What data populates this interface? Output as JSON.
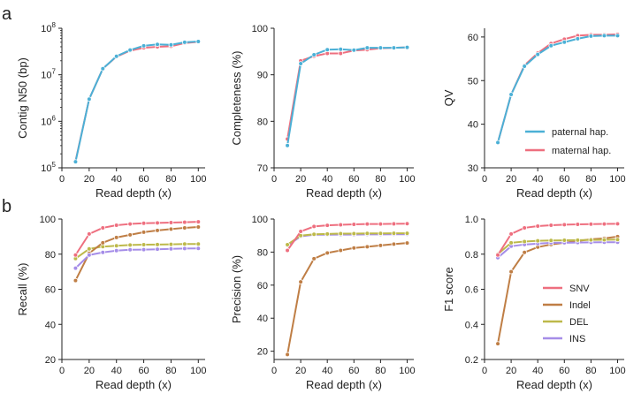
{
  "panel_labels": [
    "a",
    "b"
  ],
  "colors": {
    "paternal": "#4bb0d6",
    "maternal": "#ee6f7f",
    "SNV": "#ee6f7f",
    "Indel": "#bf7e45",
    "DEL": "#bdb94a",
    "INS": "#a58de8",
    "axis": "#222222"
  },
  "chart_data": [
    {
      "id": "contig_n50",
      "type": "line",
      "panel": "a",
      "yscale": "log",
      "xlabel": "Read depth (x)",
      "ylabel": "Contig N50 (bp)",
      "xlim": [
        0,
        105
      ],
      "ylim": [
        100000,
        100000000
      ],
      "xticks": [
        0,
        20,
        40,
        60,
        80,
        100
      ],
      "xticklabels": [
        "0",
        "20",
        "40",
        "60",
        "80",
        "100"
      ],
      "yticks": [
        100000,
        1000000,
        10000000,
        100000000
      ],
      "yticklabels": [
        [
          "10",
          "5"
        ],
        [
          "10",
          "6"
        ],
        [
          "10",
          "7"
        ],
        [
          "10",
          "8"
        ]
      ],
      "x": [
        10,
        20,
        30,
        40,
        50,
        60,
        70,
        80,
        90,
        100
      ],
      "series": [
        {
          "name": "maternal hap.",
          "color_key": "maternal",
          "values": [
            140000,
            3000000,
            13500000,
            24500000,
            33000000,
            38000000,
            40000000,
            41000000,
            48000000,
            51000000
          ]
        },
        {
          "name": "paternal hap.",
          "color_key": "paternal",
          "values": [
            135000,
            3000000,
            13500000,
            25000000,
            34000000,
            42000000,
            45000000,
            44000000,
            50000000,
            52000000
          ]
        }
      ],
      "legend": null
    },
    {
      "id": "completeness",
      "type": "line",
      "panel": "a",
      "xlabel": "Read depth (x)",
      "ylabel": "Completeness (%)",
      "xlim": [
        0,
        105
      ],
      "ylim": [
        70,
        100
      ],
      "xticks": [
        0,
        20,
        40,
        60,
        80,
        100
      ],
      "xticklabels": [
        "0",
        "20",
        "40",
        "60",
        "80",
        "100"
      ],
      "yticks": [
        70,
        80,
        90,
        100
      ],
      "yticklabels": [
        "70",
        "80",
        "90",
        "100"
      ],
      "x": [
        10,
        20,
        30,
        40,
        50,
        60,
        70,
        80,
        90,
        100
      ],
      "series": [
        {
          "name": "maternal hap.",
          "color_key": "maternal",
          "values": [
            76.2,
            93.0,
            94.0,
            94.6,
            94.6,
            95.2,
            95.4,
            95.7,
            95.8,
            95.9
          ]
        },
        {
          "name": "paternal hap.",
          "color_key": "paternal",
          "values": [
            74.8,
            92.4,
            94.3,
            95.4,
            95.5,
            95.3,
            95.8,
            95.8,
            95.8,
            95.9
          ]
        }
      ],
      "legend": null
    },
    {
      "id": "qv",
      "type": "line",
      "panel": "a",
      "xlabel": "Read depth (x)",
      "ylabel": "QV",
      "xlim": [
        0,
        105
      ],
      "ylim": [
        30,
        62
      ],
      "xticks": [
        0,
        20,
        40,
        60,
        80,
        100
      ],
      "xticklabels": [
        "0",
        "20",
        "40",
        "60",
        "80",
        "100"
      ],
      "yticks": [
        30,
        40,
        50,
        60
      ],
      "yticklabels": [
        "30",
        "40",
        "50",
        "60"
      ],
      "x": [
        10,
        20,
        30,
        40,
        50,
        60,
        70,
        80,
        90,
        100
      ],
      "series": [
        {
          "name": "maternal hap.",
          "color_key": "maternal",
          "values": [
            35.8,
            46.8,
            53.5,
            56.3,
            58.5,
            59.5,
            60.3,
            60.5,
            60.5,
            60.6
          ]
        },
        {
          "name": "paternal hap.",
          "color_key": "paternal",
          "values": [
            35.8,
            46.8,
            53.3,
            56.0,
            58.0,
            58.8,
            59.6,
            60.2,
            60.3,
            60.3
          ]
        }
      ],
      "legend": {
        "position": "lower-right",
        "entries": [
          {
            "label": "paternal hap.",
            "color_key": "paternal"
          },
          {
            "label": "maternal hap.",
            "color_key": "maternal"
          }
        ]
      }
    },
    {
      "id": "recall",
      "type": "line",
      "panel": "b",
      "xlabel": "Read depth (x)",
      "ylabel": "Recall (%)",
      "xlim": [
        0,
        105
      ],
      "ylim": [
        20,
        100
      ],
      "xticks": [
        0,
        20,
        40,
        60,
        80,
        100
      ],
      "xticklabels": [
        "0",
        "20",
        "40",
        "60",
        "80",
        "100"
      ],
      "yticks": [
        20,
        40,
        60,
        80,
        100
      ],
      "yticklabels": [
        "20",
        "40",
        "60",
        "80",
        "100"
      ],
      "x": [
        10,
        20,
        30,
        40,
        50,
        60,
        70,
        80,
        90,
        100
      ],
      "series": [
        {
          "name": "DEL",
          "color_key": "DEL",
          "values": [
            77.5,
            83.0,
            84.3,
            84.8,
            85.2,
            85.4,
            85.5,
            85.6,
            85.8,
            85.8
          ]
        },
        {
          "name": "Indel",
          "color_key": "Indel",
          "values": [
            65.0,
            80.5,
            86.5,
            89.5,
            91.0,
            92.5,
            93.5,
            94.3,
            95.0,
            95.5
          ]
        },
        {
          "name": "INS",
          "color_key": "INS",
          "values": [
            72.0,
            79.5,
            81.0,
            82.0,
            82.5,
            82.6,
            82.8,
            83.0,
            83.2,
            83.3
          ]
        },
        {
          "name": "SNV",
          "color_key": "SNV",
          "values": [
            79.5,
            91.5,
            95.0,
            96.5,
            97.2,
            97.6,
            97.8,
            98.0,
            98.2,
            98.4
          ]
        }
      ],
      "legend": null
    },
    {
      "id": "precision",
      "type": "line",
      "panel": "b",
      "xlabel": "Read depth (x)",
      "ylabel": "Precision (%)",
      "xlim": [
        0,
        105
      ],
      "ylim": [
        15,
        100
      ],
      "xticks": [
        0,
        20,
        40,
        60,
        80,
        100
      ],
      "xticklabels": [
        "0",
        "20",
        "40",
        "60",
        "80",
        "100"
      ],
      "yticks": [
        20,
        40,
        60,
        80,
        100
      ],
      "yticklabels": [
        "20",
        "40",
        "60",
        "80",
        "100"
      ],
      "x": [
        10,
        20,
        30,
        40,
        50,
        60,
        70,
        80,
        90,
        100
      ],
      "series": [
        {
          "name": "Indel",
          "color_key": "Indel",
          "values": [
            18.0,
            62.0,
            76.0,
            79.5,
            81.0,
            82.5,
            83.2,
            84.0,
            84.8,
            85.5
          ]
        },
        {
          "name": "INS",
          "color_key": "INS",
          "values": [
            84.0,
            89.5,
            90.5,
            90.5,
            90.6,
            90.6,
            90.7,
            90.7,
            90.8,
            90.8
          ]
        },
        {
          "name": "DEL",
          "color_key": "DEL",
          "values": [
            84.5,
            90.0,
            90.8,
            91.0,
            91.2,
            91.2,
            91.3,
            91.3,
            91.4,
            91.4
          ]
        },
        {
          "name": "SNV",
          "color_key": "SNV",
          "values": [
            81.0,
            92.5,
            95.5,
            96.2,
            96.5,
            96.8,
            97.0,
            97.0,
            97.1,
            97.2
          ]
        }
      ],
      "legend": null
    },
    {
      "id": "f1_score",
      "type": "line",
      "panel": "b",
      "xlabel": "Read depth (x)",
      "ylabel": "F1 score",
      "xlim": [
        0,
        105
      ],
      "ylim": [
        0.2,
        1.0
      ],
      "xticks": [
        0,
        20,
        40,
        60,
        80,
        100
      ],
      "xticklabels": [
        "0",
        "20",
        "40",
        "60",
        "80",
        "100"
      ],
      "yticks": [
        0.2,
        0.4,
        0.6,
        0.8,
        1.0
      ],
      "yticklabels": [
        "0.2",
        "0.4",
        "0.6",
        "0.8",
        "1.0"
      ],
      "x": [
        10,
        20,
        30,
        40,
        50,
        60,
        70,
        80,
        90,
        100
      ],
      "series": [
        {
          "name": "Indel",
          "color_key": "Indel",
          "values": [
            0.29,
            0.7,
            0.81,
            0.84,
            0.855,
            0.865,
            0.875,
            0.885,
            0.89,
            0.9
          ]
        },
        {
          "name": "INS",
          "color_key": "INS",
          "values": [
            0.78,
            0.845,
            0.855,
            0.86,
            0.865,
            0.865,
            0.866,
            0.867,
            0.868,
            0.868
          ]
        },
        {
          "name": "DEL",
          "color_key": "DEL",
          "values": [
            0.8,
            0.865,
            0.872,
            0.876,
            0.878,
            0.879,
            0.88,
            0.881,
            0.882,
            0.883
          ]
        },
        {
          "name": "SNV",
          "color_key": "SNV",
          "values": [
            0.795,
            0.915,
            0.95,
            0.96,
            0.965,
            0.968,
            0.97,
            0.971,
            0.972,
            0.973
          ]
        }
      ],
      "legend": {
        "position": "lower-right",
        "entries": [
          {
            "label": "SNV",
            "color_key": "SNV"
          },
          {
            "label": "Indel",
            "color_key": "Indel"
          },
          {
            "label": "DEL",
            "color_key": "DEL"
          },
          {
            "label": "INS",
            "color_key": "INS"
          }
        ]
      }
    }
  ]
}
